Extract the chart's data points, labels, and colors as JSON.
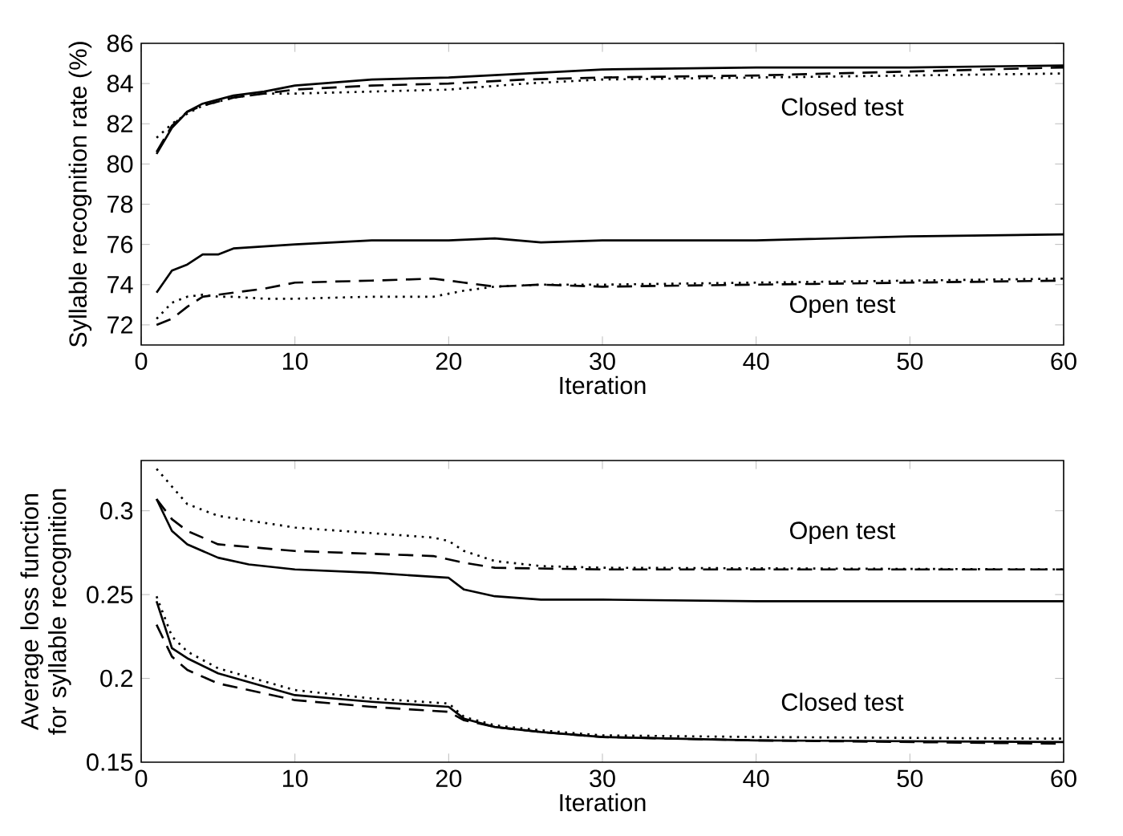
{
  "chart_data": [
    {
      "type": "line",
      "xlabel": "Iteration",
      "ylabel": "Syllable recognition rate (%)",
      "xlim": [
        0,
        60
      ],
      "ylim": [
        71,
        86
      ],
      "xticks": [
        0,
        10,
        20,
        30,
        40,
        50,
        60
      ],
      "yticks": [
        72,
        74,
        76,
        78,
        80,
        82,
        84,
        86
      ],
      "series": [
        {
          "color": "#000000",
          "line_style": "solid",
          "x": [
            1,
            2,
            3,
            4,
            6,
            8,
            10,
            15,
            20,
            25,
            30,
            40,
            50,
            60
          ],
          "values": [
            80.5,
            81.8,
            82.6,
            83.0,
            83.4,
            83.6,
            83.9,
            84.2,
            84.3,
            84.5,
            84.7,
            84.8,
            84.8,
            84.9
          ]
        },
        {
          "color": "#000000",
          "line_style": "dashed",
          "x": [
            1,
            2,
            3,
            4,
            6,
            8,
            10,
            15,
            20,
            25,
            30,
            40,
            50,
            60
          ],
          "values": [
            80.6,
            81.9,
            82.6,
            82.9,
            83.3,
            83.5,
            83.7,
            83.9,
            84.0,
            84.2,
            84.3,
            84.4,
            84.6,
            84.8
          ]
        },
        {
          "color": "#000000",
          "line_style": "dotted",
          "x": [
            1,
            2,
            3,
            4,
            6,
            8,
            10,
            15,
            20,
            25,
            30,
            40,
            50,
            60
          ],
          "values": [
            81.3,
            82.0,
            82.5,
            82.9,
            83.3,
            83.5,
            83.5,
            83.6,
            83.7,
            84.0,
            84.2,
            84.3,
            84.4,
            84.5
          ]
        },
        {
          "color": "#000000",
          "line_style": "solid",
          "x": [
            1,
            2,
            3,
            4,
            5,
            6,
            8,
            10,
            15,
            20,
            23,
            26,
            30,
            40,
            50,
            60
          ],
          "values": [
            73.6,
            74.7,
            75.0,
            75.5,
            75.5,
            75.8,
            75.9,
            76.0,
            76.2,
            76.2,
            76.3,
            76.1,
            76.2,
            76.2,
            76.4,
            76.5
          ]
        },
        {
          "color": "#000000",
          "line_style": "dashed",
          "x": [
            1,
            2,
            3,
            4,
            5,
            6,
            8,
            10,
            15,
            19,
            21,
            23,
            26,
            30,
            40,
            50,
            60
          ],
          "values": [
            72.0,
            72.3,
            72.9,
            73.4,
            73.5,
            73.6,
            73.8,
            74.1,
            74.2,
            74.3,
            74.1,
            73.9,
            74.0,
            73.9,
            74.0,
            74.1,
            74.2
          ]
        },
        {
          "color": "#000000",
          "line_style": "dotted",
          "x": [
            1,
            2,
            3,
            4,
            5,
            6,
            8,
            10,
            15,
            19,
            21,
            23,
            26,
            30,
            40,
            50,
            60
          ],
          "values": [
            72.3,
            73.1,
            73.4,
            73.5,
            73.4,
            73.4,
            73.3,
            73.3,
            73.4,
            73.4,
            73.7,
            73.9,
            74.0,
            74.0,
            74.1,
            74.2,
            74.3
          ]
        }
      ],
      "annotations": [
        "Closed test",
        "Open test"
      ]
    },
    {
      "type": "line",
      "xlabel": "Iteration",
      "ylabel": "Average loss function for syllable recognition",
      "xlim": [
        0,
        60
      ],
      "ylim": [
        0.15,
        0.33
      ],
      "xticks": [
        0,
        10,
        20,
        30,
        40,
        50,
        60
      ],
      "yticks": [
        0.15,
        0.2,
        0.25,
        0.3
      ],
      "series": [
        {
          "color": "#000000",
          "line_style": "solid",
          "x": [
            1,
            2,
            3,
            5,
            7,
            10,
            15,
            20,
            21,
            23,
            26,
            30,
            40,
            60
          ],
          "values": [
            0.307,
            0.288,
            0.28,
            0.272,
            0.268,
            0.265,
            0.263,
            0.26,
            0.253,
            0.249,
            0.247,
            0.247,
            0.246,
            0.246
          ]
        },
        {
          "color": "#000000",
          "line_style": "dashed",
          "x": [
            1,
            2,
            3,
            5,
            10,
            19,
            21,
            23,
            30,
            60
          ],
          "values": [
            0.307,
            0.295,
            0.288,
            0.28,
            0.276,
            0.273,
            0.269,
            0.266,
            0.265,
            0.265
          ]
        },
        {
          "color": "#000000",
          "line_style": "dotted",
          "x": [
            1,
            3,
            5,
            10,
            19,
            20,
            21,
            23,
            26,
            30,
            60
          ],
          "values": [
            0.325,
            0.304,
            0.297,
            0.29,
            0.284,
            0.282,
            0.276,
            0.27,
            0.267,
            0.266,
            0.265
          ]
        },
        {
          "color": "#000000",
          "line_style": "solid",
          "x": [
            1,
            2,
            3,
            5,
            10,
            15,
            20,
            21,
            23,
            26,
            30,
            40,
            60
          ],
          "values": [
            0.246,
            0.218,
            0.212,
            0.203,
            0.19,
            0.186,
            0.183,
            0.176,
            0.171,
            0.168,
            0.165,
            0.163,
            0.162
          ]
        },
        {
          "color": "#000000",
          "line_style": "dashed",
          "x": [
            1,
            2,
            3,
            5,
            10,
            15,
            20,
            21,
            23,
            26,
            30,
            40,
            60
          ],
          "values": [
            0.232,
            0.213,
            0.205,
            0.197,
            0.187,
            0.183,
            0.18,
            0.175,
            0.171,
            0.168,
            0.165,
            0.163,
            0.161
          ]
        },
        {
          "color": "#000000",
          "line_style": "dotted",
          "x": [
            1,
            2,
            3,
            5,
            10,
            15,
            20,
            21,
            23,
            26,
            30,
            40,
            60
          ],
          "values": [
            0.249,
            0.225,
            0.216,
            0.206,
            0.193,
            0.188,
            0.185,
            0.177,
            0.172,
            0.169,
            0.166,
            0.165,
            0.164
          ]
        }
      ],
      "annotations": [
        "Open test",
        "Closed test"
      ]
    }
  ]
}
